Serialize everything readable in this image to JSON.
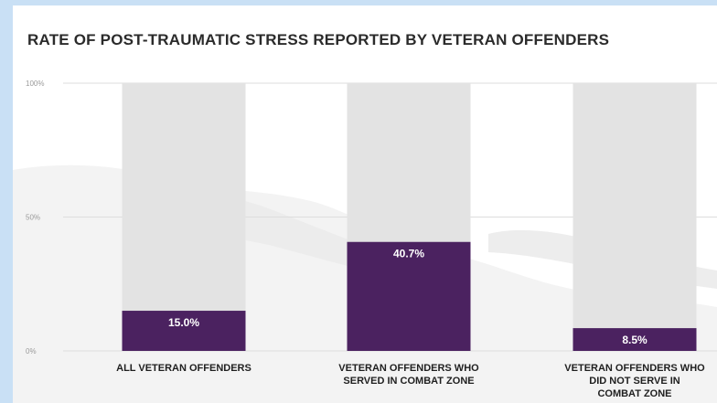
{
  "chart_data": {
    "type": "bar",
    "title": "RATE OF POST-TRAUMATIC STRESS REPORTED BY VETERAN OFFENDERS",
    "categories": [
      [
        "ALL VETERAN OFFENDERS"
      ],
      [
        "VETERAN OFFENDERS WHO",
        "SERVED IN COMBAT ZONE"
      ],
      [
        "VETERAN OFFENDERS WHO",
        "DID NOT SERVE IN",
        "COMBAT ZONE"
      ]
    ],
    "values": [
      15.0,
      40.7,
      8.5
    ],
    "data_labels": [
      "15.0%",
      "40.7%",
      "8.5%"
    ],
    "yticks": [
      "0%",
      "50%",
      "100%"
    ],
    "ylim": [
      0,
      100
    ],
    "grid": true,
    "colors": {
      "bar": "#4b2260",
      "track": "#e3e3e3"
    }
  }
}
